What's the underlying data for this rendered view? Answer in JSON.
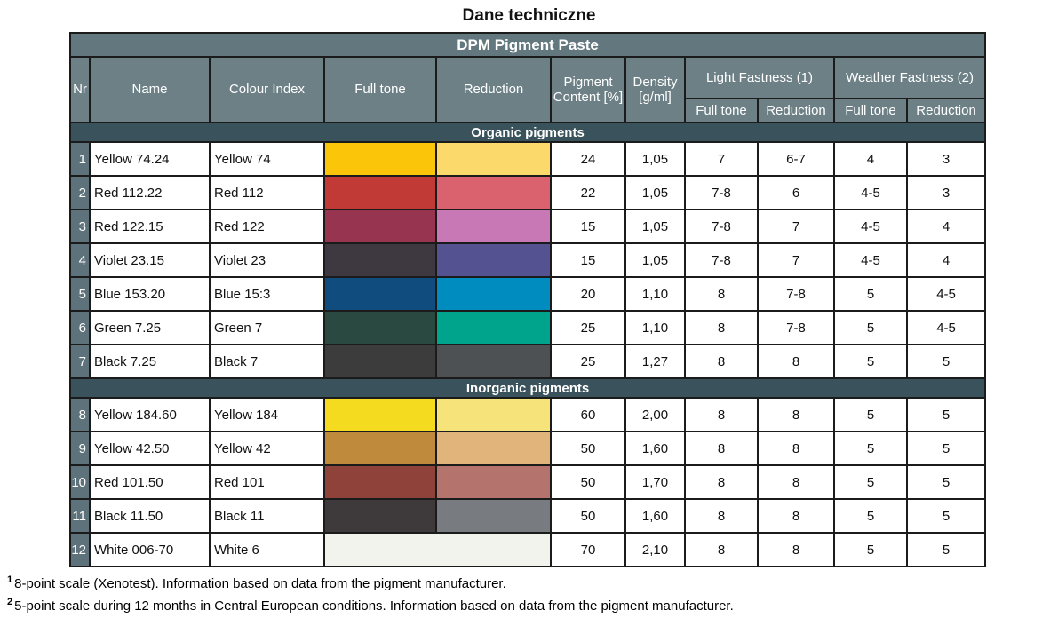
{
  "page_title": "Dane techniczne",
  "table": {
    "band_title": "DPM Pigment Paste",
    "headers": {
      "nr": "Nr",
      "name": "Name",
      "colour_index": "Colour Index",
      "full_tone": "Full tone",
      "reduction": "Reduction",
      "pigment_content": "Pigment Content [%]",
      "density": "Density [g/ml]",
      "light_fastness": "Light Fastness (1)",
      "weather_fastness": "Weather Fastness (2)",
      "lf_full_tone": "Full tone",
      "lf_reduction": "Reduction",
      "wf_full_tone": "Full tone",
      "wf_reduction": "Reduction"
    },
    "colors": {
      "band_bg": "#62777E",
      "header_bg": "#6C8086",
      "nr_bg": "#5D727A",
      "section_bg": "#3A525B",
      "border": "#1b1b1b"
    },
    "sections": [
      {
        "label": "Organic pigments",
        "rows": [
          {
            "nr": "1",
            "name": "Yellow 74.24",
            "colour_index": "Yellow 74",
            "full_tone_color": "#FBC509",
            "reduction_color": "#FBD96B",
            "pigment_content": "24",
            "density": "1,05",
            "lf_full_tone": "7",
            "lf_reduction": "6-7",
            "wf_full_tone": "4",
            "wf_reduction": "3"
          },
          {
            "nr": "2",
            "name": "Red 112.22",
            "colour_index": "Red 112",
            "full_tone_color": "#C23A36",
            "reduction_color": "#D9626E",
            "pigment_content": "22",
            "density": "1,05",
            "lf_full_tone": "7-8",
            "lf_reduction": "6",
            "wf_full_tone": "4-5",
            "wf_reduction": "3"
          },
          {
            "nr": "3",
            "name": "Red 122.15",
            "colour_index": "Red 122",
            "full_tone_color": "#97344F",
            "reduction_color": "#C878B5",
            "pigment_content": "15",
            "density": "1,05",
            "lf_full_tone": "7-8",
            "lf_reduction": "7",
            "wf_full_tone": "4-5",
            "wf_reduction": "4"
          },
          {
            "nr": "4",
            "name": "Violet 23.15",
            "colour_index": "Violet 23",
            "full_tone_color": "#3E3940",
            "reduction_color": "#545290",
            "pigment_content": "15",
            "density": "1,05",
            "lf_full_tone": "7-8",
            "lf_reduction": "7",
            "wf_full_tone": "4-5",
            "wf_reduction": "4"
          },
          {
            "nr": "5",
            "name": "Blue 153.20",
            "colour_index": "Blue 15:3",
            "full_tone_color": "#114C7E",
            "reduction_color": "#008CBE",
            "pigment_content": "20",
            "density": "1,10",
            "lf_full_tone": "8",
            "lf_reduction": "7-8",
            "wf_full_tone": "5",
            "wf_reduction": "4-5"
          },
          {
            "nr": "6",
            "name": "Green 7.25",
            "colour_index": "Green 7",
            "full_tone_color": "#2A4A41",
            "reduction_color": "#00A48C",
            "pigment_content": "25",
            "density": "1,10",
            "lf_full_tone": "8",
            "lf_reduction": "7-8",
            "wf_full_tone": "5",
            "wf_reduction": "4-5"
          },
          {
            "nr": "7",
            "name": "Black 7.25",
            "colour_index": "Black 7",
            "full_tone_color": "#3B3C3B",
            "reduction_color": "#4D5154",
            "pigment_content": "25",
            "density": "1,27",
            "lf_full_tone": "8",
            "lf_reduction": "8",
            "wf_full_tone": "5",
            "wf_reduction": "5"
          }
        ]
      },
      {
        "label": "Inorganic pigments",
        "rows": [
          {
            "nr": "8",
            "name": "Yellow 184.60",
            "colour_index": "Yellow 184",
            "full_tone_color": "#F5DB1F",
            "reduction_color": "#F6E47B",
            "pigment_content": "60",
            "density": "2,00",
            "lf_full_tone": "8",
            "lf_reduction": "8",
            "wf_full_tone": "5",
            "wf_reduction": "5"
          },
          {
            "nr": "9",
            "name": "Yellow 42.50",
            "colour_index": "Yellow 42",
            "full_tone_color": "#C08A3D",
            "reduction_color": "#E0B47A",
            "pigment_content": "50",
            "density": "1,60",
            "lf_full_tone": "8",
            "lf_reduction": "8",
            "wf_full_tone": "5",
            "wf_reduction": "5"
          },
          {
            "nr": "10",
            "name": "Red 101.50",
            "colour_index": "Red 101",
            "full_tone_color": "#8E423A",
            "reduction_color": "#B4736C",
            "pigment_content": "50",
            "density": "1,70",
            "lf_full_tone": "8",
            "lf_reduction": "8",
            "wf_full_tone": "5",
            "wf_reduction": "5"
          },
          {
            "nr": "11",
            "name": "Black 11.50",
            "colour_index": "Black 11",
            "full_tone_color": "#3E3A3B",
            "reduction_color": "#787C80",
            "pigment_content": "50",
            "density": "1,60",
            "lf_full_tone": "8",
            "lf_reduction": "8",
            "wf_full_tone": "5",
            "wf_reduction": "5"
          },
          {
            "nr": "12",
            "name": "White 006-70",
            "colour_index": "White 6",
            "full_tone_color": "#F2F3EC",
            "reduction_color": null,
            "swatch_colspan": 2,
            "pigment_content": "70",
            "density": "2,10",
            "lf_full_tone": "8",
            "lf_reduction": "8",
            "wf_full_tone": "5",
            "wf_reduction": "5"
          }
        ]
      }
    ]
  },
  "footnotes": [
    {
      "sup": "1",
      "text": "8-point scale (Xenotest). Information based on data from the pigment manufacturer."
    },
    {
      "sup": "2",
      "text": "5-point scale during 12 months in Central European conditions. Information based on data from the pigment manufacturer."
    }
  ]
}
